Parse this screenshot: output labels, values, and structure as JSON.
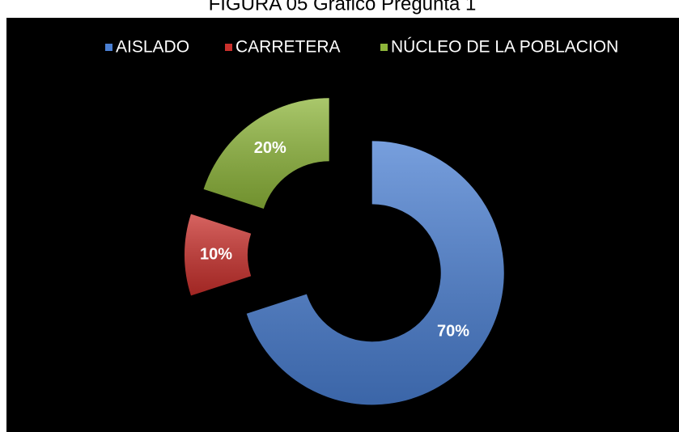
{
  "chart_data": {
    "type": "doughnut",
    "title": "FIGURA 05 Gráfico Pregunta 1",
    "categories": [
      "AISLADO",
      "CARRETERA",
      "NÚCLEO DE LA POBLACION"
    ],
    "values": [
      70,
      10,
      20
    ],
    "value_labels": [
      "70%",
      "10%",
      "20%"
    ],
    "colors": [
      "#4a7fd2",
      "#c9302c",
      "#8db53a"
    ],
    "legend": "top",
    "exploded": true
  }
}
